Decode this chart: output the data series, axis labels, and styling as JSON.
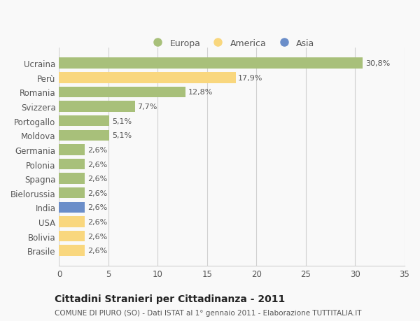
{
  "categories": [
    "Brasile",
    "Bolivia",
    "USA",
    "India",
    "Bielorussia",
    "Spagna",
    "Polonia",
    "Germania",
    "Moldova",
    "Portogallo",
    "Svizzera",
    "Romania",
    "Perù",
    "Ucraina"
  ],
  "values": [
    2.6,
    2.6,
    2.6,
    2.6,
    2.6,
    2.6,
    2.6,
    2.6,
    5.1,
    5.1,
    7.7,
    12.8,
    17.9,
    30.8
  ],
  "labels": [
    "2,6%",
    "2,6%",
    "2,6%",
    "2,6%",
    "2,6%",
    "2,6%",
    "2,6%",
    "2,6%",
    "5,1%",
    "5,1%",
    "7,7%",
    "12,8%",
    "17,9%",
    "30,8%"
  ],
  "colors": [
    "#f9d77e",
    "#f9d77e",
    "#f9d77e",
    "#6b8ec9",
    "#a8c07a",
    "#a8c07a",
    "#a8c07a",
    "#a8c07a",
    "#a8c07a",
    "#a8c07a",
    "#a8c07a",
    "#a8c07a",
    "#f9d77e",
    "#a8c07a"
  ],
  "legend_labels": [
    "Europa",
    "America",
    "Asia"
  ],
  "legend_colors": [
    "#a8c07a",
    "#f9d77e",
    "#6b8ec9"
  ],
  "title": "Cittadini Stranieri per Cittadinanza - 2011",
  "subtitle": "COMUNE DI PIURO (SO) - Dati ISTAT al 1° gennaio 2011 - Elaborazione TUTTITALIA.IT",
  "xlim": [
    0,
    35
  ],
  "xticks": [
    0,
    5,
    10,
    15,
    20,
    25,
    30,
    35
  ],
  "background_color": "#f9f9f9",
  "bar_height": 0.75,
  "grid_color": "#d0d0d0",
  "text_color": "#555555",
  "title_fontsize": 10,
  "subtitle_fontsize": 7.5,
  "tick_fontsize": 8.5,
  "label_fontsize": 8
}
